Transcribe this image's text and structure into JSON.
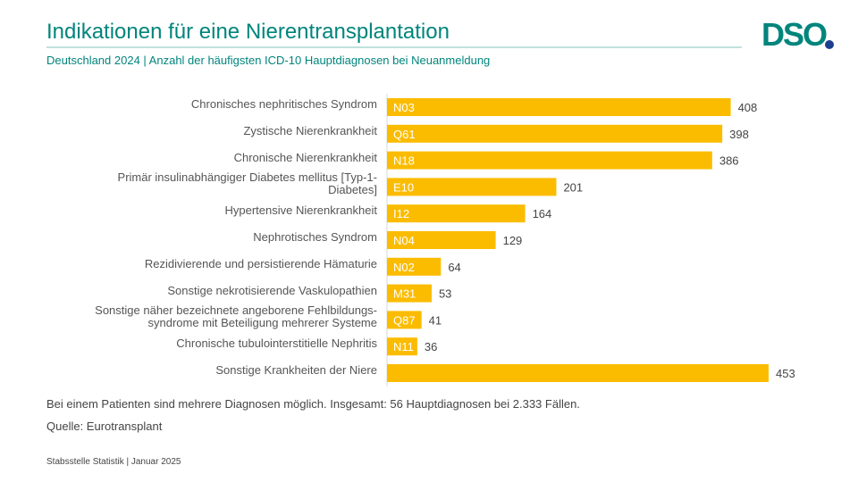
{
  "logo": "DSO",
  "chart_data": {
    "type": "bar",
    "orientation": "horizontal",
    "title": "Indikationen für eine Nierentransplantation",
    "subtitle": "Deutschland 2024 |  Anzahl der häufigsten ICD-10 Hauptdiagnosen bei Neuanmeldung",
    "categories": [
      "Chronisches nephritisches Syndrom",
      "Zystische Nierenkrankheit",
      "Chronische Nierenkrankheit",
      "Primär insulinabhängiger Diabetes mellitus [Typ-1-\nDiabetes]",
      "Hypertensive Nierenkrankheit",
      "Nephrotisches Syndrom",
      "Rezidivierende und persistierende Hämaturie",
      "Sonstige nekrotisierende Vaskulopathien",
      "Sonstige näher bezeichnete angeborene Fehlbildungs-\nsyndrome mit Beteiligung mehrerer Systeme",
      "Chronische tubulointerstitielle Nephritis",
      "Sonstige Krankheiten der Niere"
    ],
    "codes": [
      "N03",
      "Q61",
      "N18",
      "E10",
      "I12",
      "N04",
      "N02",
      "M31",
      "Q87",
      "N11",
      null
    ],
    "values": [
      408,
      398,
      386,
      201,
      164,
      129,
      64,
      53,
      41,
      36,
      453
    ],
    "color": "#fbbc00",
    "note": "Bei einem Patienten sind mehrere Diagnosen möglich. Insgesamt: 56 Hauptdiagnosen bei 2.333 Fällen.",
    "source": "Quelle: Eurotransplant",
    "footer": "Stabsstelle Statistik | Januar 2025"
  }
}
